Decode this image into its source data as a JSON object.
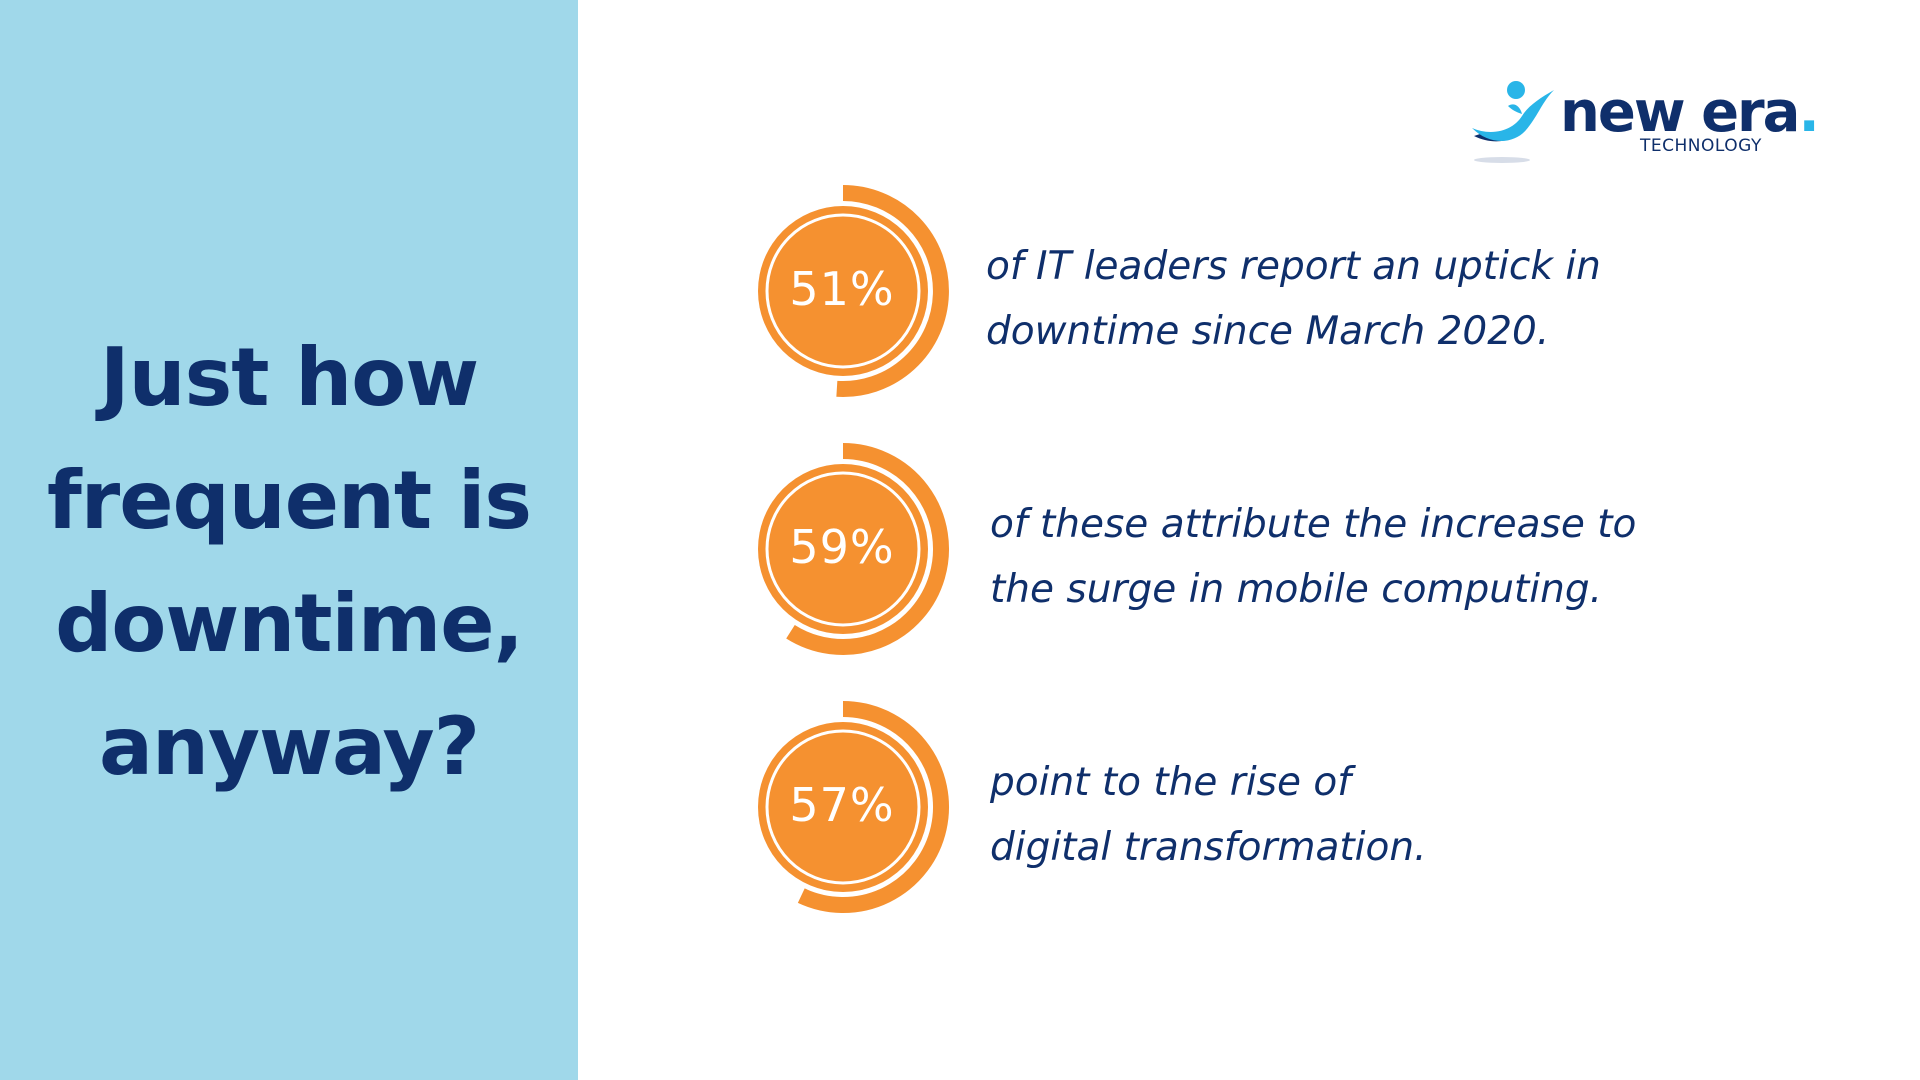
{
  "headline": {
    "lines": [
      "Just how",
      "frequent is",
      "downtime,",
      "anyway?"
    ]
  },
  "logo": {
    "word": "new era",
    "dot": ".",
    "sub": "TECHNOLOGY"
  },
  "colors": {
    "left_panel": "#a0d8ea",
    "navy": "#0f2f6b",
    "orange": "#f59130",
    "logo_accent": "#29b5e8"
  },
  "stats": [
    {
      "value": "51%",
      "fraction": 0.51,
      "lines": [
        "of IT leaders report an uptick in",
        "downtime since March 2020."
      ]
    },
    {
      "value": "59%",
      "fraction": 0.59,
      "lines": [
        "of these attribute the increase to",
        "the surge in mobile computing."
      ]
    },
    {
      "value": "57%",
      "fraction": 0.57,
      "lines": [
        "point to the rise of",
        "digital transformation."
      ]
    }
  ]
}
